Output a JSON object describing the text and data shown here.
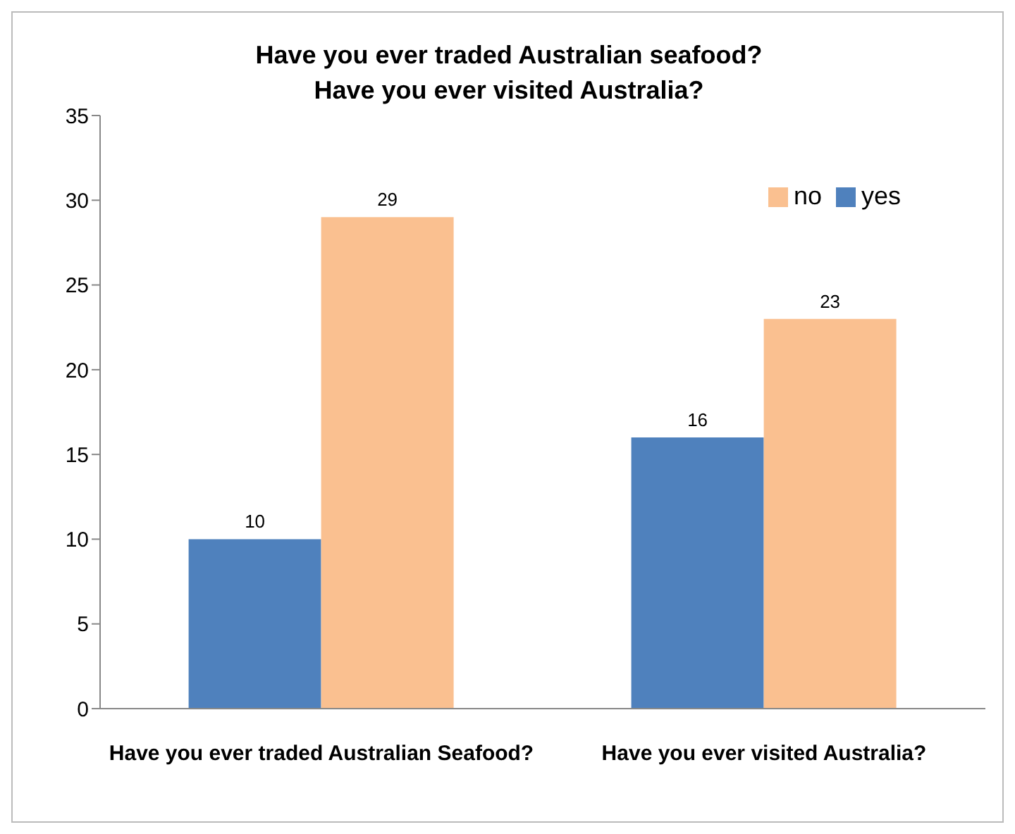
{
  "chart_data": {
    "type": "bar",
    "title": "Have you ever traded Australian seafood?\nHave you ever visited Australia?",
    "categories": [
      "Have you ever traded Australian Seafood?",
      "Have you ever visited Australia?"
    ],
    "series": [
      {
        "name": "yes",
        "color": "#4f81bd",
        "values": [
          10,
          16
        ]
      },
      {
        "name": "no",
        "color": "#fac090",
        "values": [
          29,
          23
        ]
      }
    ],
    "ylim": [
      0,
      35
    ],
    "yticks": [
      0,
      5,
      10,
      15,
      20,
      25,
      30,
      35
    ],
    "data_labels": true,
    "legend": "top right",
    "grid": false
  }
}
